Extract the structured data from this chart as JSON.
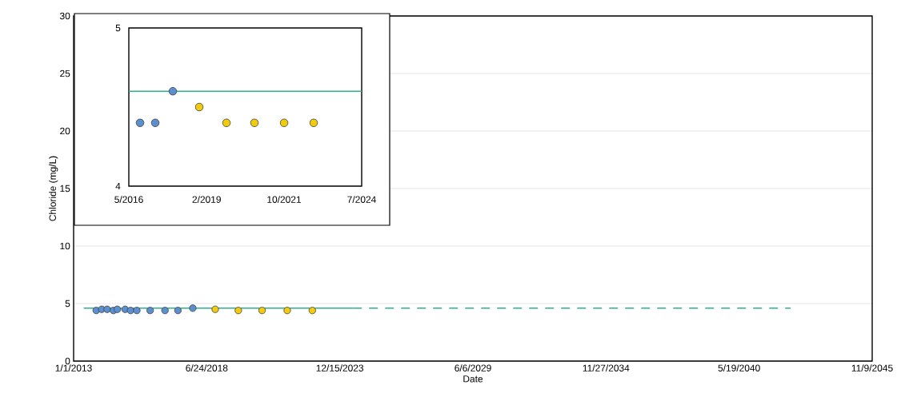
{
  "chart_data": [
    {
      "type": "scatter",
      "xlabel": "Date",
      "ylabel": "Chloride (mg/L)",
      "xlim": [
        "2013-01-01",
        "2045-11-09"
      ],
      "ylim": [
        0,
        30
      ],
      "xticks": [
        {
          "value": "2013-01-01",
          "label": "1/1/2013"
        },
        {
          "value": "2018-06-24",
          "label": "6/24/2018"
        },
        {
          "value": "2023-12-15",
          "label": "12/15/2023"
        },
        {
          "value": "2029-06-06",
          "label": "6/6/2029"
        },
        {
          "value": "2034-11-27",
          "label": "11/27/2034"
        },
        {
          "value": "2040-05-19",
          "label": "5/19/2040"
        },
        {
          "value": "2045-11-09",
          "label": "11/9/2045"
        }
      ],
      "yticks": [
        0,
        5,
        10,
        15,
        20,
        25,
        30
      ],
      "grid": "y",
      "series": [
        {
          "type": "line",
          "line_style": "solid",
          "color": "#2db38a",
          "x": [
            "2013-06-01",
            "2024-07-01"
          ],
          "values": [
            4.6,
            4.6
          ]
        },
        {
          "type": "line",
          "line_style": "dashed",
          "color": "#2db38a",
          "x": [
            "2024-07-01",
            "2042-07-01"
          ],
          "values": [
            4.6,
            4.6
          ]
        },
        {
          "marker": "circle",
          "color": "#5b8fd0",
          "x": [
            "2013-12-07",
            "2014-02-27",
            "2014-05-20",
            "2014-08-22",
            "2014-10-20",
            "2015-02-14",
            "2015-05-07",
            "2015-08-09",
            "2016-02-25",
            "2016-10-05",
            "2017-04-17",
            "2017-11-27"
          ],
          "values": [
            4.4,
            4.5,
            4.5,
            4.4,
            4.5,
            4.5,
            4.4,
            4.4,
            4.4,
            4.4,
            4.4,
            4.6
          ]
        },
        {
          "marker": "circle",
          "color": "#f2cc0c",
          "x": [
            "2018-10-30",
            "2019-10-12",
            "2020-10-03",
            "2021-10-16",
            "2022-10-28"
          ],
          "values": [
            4.5,
            4.4,
            4.4,
            4.4,
            4.4
          ]
        }
      ]
    },
    {
      "type": "scatter",
      "xlim": [
        "2016-05-15",
        "2024-07-01"
      ],
      "ylim": [
        4,
        5
      ],
      "xticks": [
        {
          "value": "2016-05-15",
          "label": "5/2016"
        },
        {
          "value": "2019-02-01",
          "label": "2/2019"
        },
        {
          "value": "2021-10-15",
          "label": "10/2021"
        },
        {
          "value": "2024-07-01",
          "label": "7/2024"
        }
      ],
      "yticks": [
        4,
        5
      ],
      "series": [
        {
          "type": "line",
          "line_style": "solid",
          "color": "#2db38a",
          "x": [
            "2016-05-15",
            "2024-07-01"
          ],
          "values": [
            4.6,
            4.6
          ]
        },
        {
          "marker": "circle",
          "color": "#5b8fd0",
          "x": [
            "2016-10-05",
            "2017-04-17",
            "2017-11-27"
          ],
          "values": [
            4.4,
            4.4,
            4.6
          ]
        },
        {
          "marker": "circle",
          "color": "#f2cc0c",
          "x": [
            "2018-10-30",
            "2019-10-12",
            "2020-10-03",
            "2021-10-16",
            "2022-10-28"
          ],
          "values": [
            4.5,
            4.4,
            4.4,
            4.4,
            4.4
          ]
        }
      ]
    }
  ]
}
